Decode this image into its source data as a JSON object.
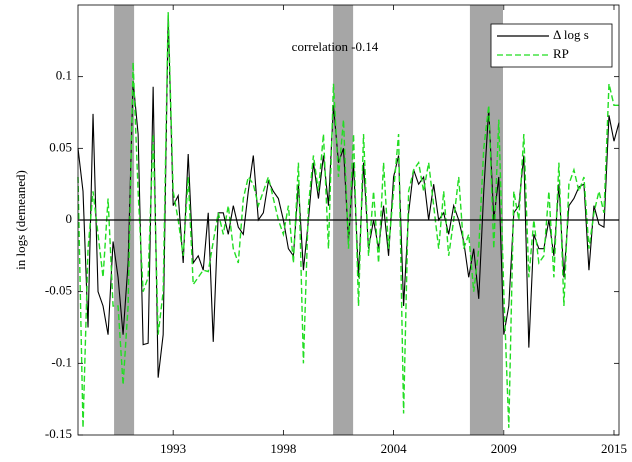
{
  "chart_data": {
    "type": "line",
    "annotation": "correlation -0.14",
    "ylabel": "in logs (demeaned)",
    "xlim": [
      1988.25,
      2015.25
    ],
    "ylim": [
      -0.15,
      0.15
    ],
    "xticks": [
      {
        "value": 1993.0,
        "label": "1993"
      },
      {
        "value": 1998.5,
        "label": "1998"
      },
      {
        "value": 2004.0,
        "label": "2004"
      },
      {
        "value": 2009.5,
        "label": "2009"
      },
      {
        "value": 2015.0,
        "label": "2015"
      }
    ],
    "yticks": [
      -0.15,
      -0.1,
      -0.05,
      0,
      0.05,
      0.1
    ],
    "hline": 0,
    "shading": [
      [
        1990.05,
        1991.05
      ],
      [
        2000.98,
        2001.98
      ],
      [
        2007.81,
        2009.46
      ]
    ],
    "shading_color": "#a6a6a6",
    "legend_position": "upper right",
    "x": [
      1988.25,
      1988.5,
      1988.75,
      1989,
      1989.25,
      1989.5,
      1989.75,
      1990,
      1990.25,
      1990.5,
      1990.75,
      1991,
      1991.25,
      1991.5,
      1991.75,
      1992,
      1992.25,
      1992.5,
      1992.75,
      1993,
      1993.25,
      1993.5,
      1993.75,
      1994,
      1994.25,
      1994.5,
      1994.75,
      1995,
      1995.25,
      1995.5,
      1995.75,
      1996,
      1996.25,
      1996.5,
      1996.75,
      1997,
      1997.25,
      1997.5,
      1997.75,
      1998,
      1998.25,
      1998.5,
      1998.75,
      1999,
      1999.25,
      1999.5,
      1999.75,
      2000,
      2000.25,
      2000.5,
      2000.75,
      2001,
      2001.25,
      2001.5,
      2001.75,
      2002,
      2002.25,
      2002.5,
      2002.75,
      2003,
      2003.25,
      2003.5,
      2003.75,
      2004,
      2004.25,
      2004.5,
      2004.75,
      2005,
      2005.25,
      2005.5,
      2005.75,
      2006,
      2006.25,
      2006.5,
      2006.75,
      2007,
      2007.25,
      2007.5,
      2007.75,
      2008,
      2008.25,
      2008.5,
      2008.75,
      2009,
      2009.25,
      2009.5,
      2009.75,
      2010,
      2010.25,
      2010.5,
      2010.75,
      2011,
      2011.25,
      2011.5,
      2011.75,
      2012,
      2012.25,
      2012.5,
      2012.75,
      2013,
      2013.25,
      2013.5,
      2013.75,
      2014,
      2014.25,
      2014.5,
      2014.75,
      2015,
      2015.25
    ],
    "series": [
      {
        "name": "Δ log s",
        "color": "#000000",
        "linestyle": "solid",
        "values": [
          0.05,
          0.02,
          -0.075,
          0.074,
          -0.05,
          -0.06,
          -0.08,
          -0.015,
          -0.04,
          -0.08,
          -0.03,
          0.097,
          0.06,
          -0.087,
          -0.086,
          0.093,
          -0.11,
          -0.08,
          0.143,
          0.01,
          0.017,
          -0.03,
          0.046,
          -0.03,
          -0.025,
          -0.035,
          0.005,
          -0.085,
          0.005,
          0.005,
          -0.01,
          0.01,
          -0.005,
          -0.01,
          0.02,
          0.045,
          0.0,
          0.005,
          0.027,
          0.02,
          0.015,
          0.0,
          -0.02,
          -0.025,
          0.025,
          -0.035,
          0.0,
          0.04,
          0.015,
          0.045,
          0.01,
          0.08,
          0.04,
          0.05,
          -0.015,
          0.04,
          -0.04,
          0.04,
          -0.02,
          0.0,
          -0.02,
          0.01,
          -0.025,
          0.03,
          0.045,
          -0.06,
          0.005,
          0.035,
          0.025,
          0.03,
          0.0,
          0.025,
          0.0,
          0.005,
          -0.01,
          0.01,
          0.0,
          -0.015,
          -0.04,
          -0.02,
          -0.055,
          0.02,
          0.078,
          0.0,
          0.03,
          -0.08,
          -0.06,
          0.005,
          0.01,
          0.045,
          -0.089,
          -0.01,
          -0.02,
          -0.02,
          0.0,
          -0.025,
          0.025,
          -0.04,
          0.01,
          0.015,
          0.023,
          0.025,
          -0.035,
          0.01,
          -0.003,
          -0.005,
          0.073,
          0.055,
          0.068
        ]
      },
      {
        "name": "RP",
        "color": "#22dd22",
        "linestyle": "dashed",
        "values": [
          0.03,
          -0.145,
          -0.02,
          0.02,
          -0.01,
          -0.04,
          0.015,
          -0.06,
          -0.06,
          -0.115,
          -0.06,
          0.11,
          0.02,
          -0.05,
          -0.04,
          0.06,
          -0.08,
          -0.05,
          0.145,
          0.02,
          0.0,
          -0.025,
          0.03,
          -0.045,
          -0.04,
          -0.035,
          -0.036,
          -0.015,
          0.005,
          -0.01,
          0.01,
          -0.02,
          -0.03,
          0.015,
          0.03,
          0.025,
          0.01,
          0.02,
          0.03,
          0.015,
          0.0,
          -0.01,
          0.01,
          -0.03,
          0.04,
          -0.1,
          0.01,
          0.045,
          0.02,
          0.06,
          -0.02,
          0.095,
          0.03,
          0.07,
          -0.02,
          0.06,
          -0.06,
          0.06,
          -0.025,
          0.02,
          -0.03,
          0.04,
          -0.02,
          0.02,
          0.06,
          -0.135,
          0.02,
          0.035,
          0.04,
          0.02,
          0.04,
          0.01,
          -0.02,
          0.02,
          -0.025,
          0.0,
          0.03,
          -0.02,
          -0.01,
          -0.05,
          -0.02,
          0.05,
          0.08,
          -0.02,
          0.07,
          -0.05,
          -0.145,
          0.02,
          0.0,
          0.06,
          -0.04,
          0.0,
          -0.03,
          -0.025,
          0.02,
          -0.04,
          0.04,
          -0.06,
          0.025,
          0.035,
          0.02,
          0.03,
          -0.02,
          0.005,
          0.02,
          0.005,
          0.095,
          0.08,
          0.08
        ]
      }
    ]
  }
}
